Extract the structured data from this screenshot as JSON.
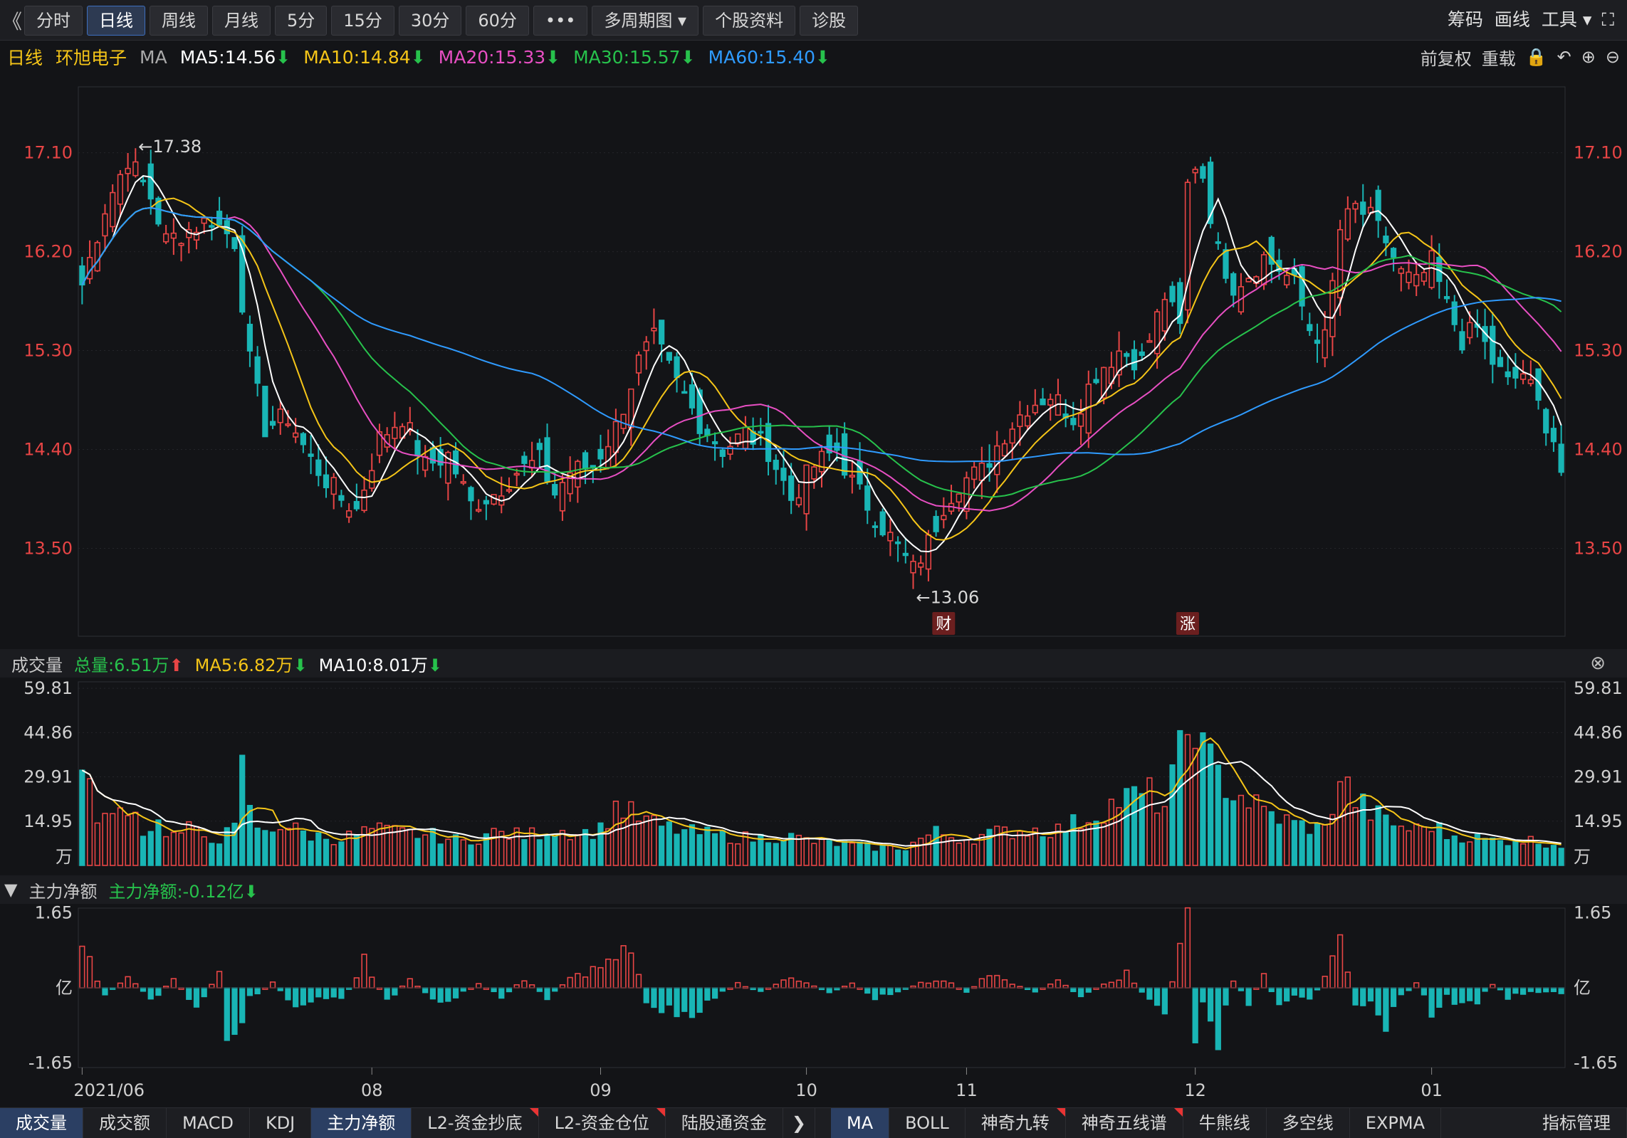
{
  "toolbar": {
    "collapse": "《",
    "periods": [
      {
        "label": "分时",
        "active": false
      },
      {
        "label": "日线",
        "active": true
      },
      {
        "label": "周线",
        "active": false
      },
      {
        "label": "月线",
        "active": false
      },
      {
        "label": "5分",
        "active": false
      },
      {
        "label": "15分",
        "active": false
      },
      {
        "label": "30分",
        "active": false
      },
      {
        "label": "60分",
        "active": false
      }
    ],
    "more": "•••",
    "multi": "多周期图",
    "profile": "个股资料",
    "diag": "诊股",
    "right": [
      "筹码",
      "画线",
      "工具"
    ],
    "tools_arrow": "▾",
    "fullscreen": "⛶"
  },
  "ma_bar": {
    "period": "日线",
    "stock": "环旭电子",
    "ind": "MA",
    "items": [
      {
        "text": "MA5:14.56",
        "color": "#ffffff"
      },
      {
        "text": "MA10:14.84",
        "color": "#f5c518"
      },
      {
        "text": "MA20:15.33",
        "color": "#e84fc3"
      },
      {
        "text": "MA30:15.57",
        "color": "#27c24c"
      },
      {
        "text": "MA60:15.40",
        "color": "#2f9bff"
      }
    ],
    "down_glyph": "⬇",
    "controls": [
      "前复权",
      "重载"
    ]
  },
  "main_chart": {
    "y_ticks": [
      "17.10",
      "16.20",
      "15.30",
      "14.40",
      "13.50"
    ],
    "ylim": [
      12.7,
      17.7
    ],
    "x_ticks": [
      {
        "label": "2021/06",
        "i": 0
      },
      {
        "label": "08",
        "i": 38
      },
      {
        "label": "09",
        "i": 68
      },
      {
        "label": "10",
        "i": 95
      },
      {
        "label": "11",
        "i": 116
      },
      {
        "label": "12",
        "i": 146
      },
      {
        "label": "01",
        "i": 177
      }
    ],
    "high_label": "←17.38",
    "low_label": "←13.06",
    "badges": [
      {
        "text": "财",
        "i": 113
      },
      {
        "text": "涨",
        "i": 145
      }
    ]
  },
  "volume": {
    "title": "成交量",
    "total": "总量:6.51万",
    "ma5": "MA5:6.82万",
    "ma10": "MA10:8.01万",
    "up_glyph": "⬆",
    "down_glyph": "⬇",
    "y_ticks": [
      "59.81",
      "44.86",
      "29.91",
      "14.95"
    ],
    "unit": "万",
    "close": "⊗"
  },
  "netflow": {
    "toggle": "▼",
    "title": "主力净额",
    "value": "主力净额:-0.12亿",
    "down_glyph": "⬇",
    "y_ticks": [
      "1.65",
      "-1.65"
    ],
    "unit": "亿"
  },
  "bottom_tabs": {
    "left": [
      {
        "label": "成交量",
        "active": true,
        "flag": false
      },
      {
        "label": "成交额",
        "active": false,
        "flag": false
      },
      {
        "label": "MACD",
        "active": false,
        "flag": false
      },
      {
        "label": "KDJ",
        "active": false,
        "flag": false
      },
      {
        "label": "主力净额",
        "active": true,
        "flag": false
      },
      {
        "label": "L2-资金抄底",
        "active": false,
        "flag": true
      },
      {
        "label": "L2-资金仓位",
        "active": false,
        "flag": true
      },
      {
        "label": "陆股通资金",
        "active": false,
        "flag": false
      }
    ],
    "arrow": "❯",
    "right": [
      {
        "label": "MA",
        "active": true,
        "flag": false
      },
      {
        "label": "BOLL",
        "active": false,
        "flag": false
      },
      {
        "label": "神奇九转",
        "active": false,
        "flag": true
      },
      {
        "label": "神奇五线谱",
        "active": false,
        "flag": true
      },
      {
        "label": "牛熊线",
        "active": false,
        "flag": false
      },
      {
        "label": "多空线",
        "active": false,
        "flag": false
      },
      {
        "label": "EXPMA",
        "active": false,
        "flag": false
      }
    ],
    "end": "指标管理"
  },
  "chart_data": {
    "type": "candlestick",
    "anchor_closes": [
      [
        0,
        15.9
      ],
      [
        3,
        16.6
      ],
      [
        6,
        17.05
      ],
      [
        9,
        16.7
      ],
      [
        11,
        16.3
      ],
      [
        14,
        16.4
      ],
      [
        17,
        16.5
      ],
      [
        20,
        16.3
      ],
      [
        22,
        15.2
      ],
      [
        24,
        14.6
      ],
      [
        27,
        14.7
      ],
      [
        30,
        14.3
      ],
      [
        34,
        13.95
      ],
      [
        36,
        13.85
      ],
      [
        39,
        14.5
      ],
      [
        42,
        14.7
      ],
      [
        45,
        14.25
      ],
      [
        48,
        14.35
      ],
      [
        51,
        13.9
      ],
      [
        54,
        14.0
      ],
      [
        57,
        14.2
      ],
      [
        60,
        14.3
      ],
      [
        62,
        14.0
      ],
      [
        64,
        14.2
      ],
      [
        67,
        14.25
      ],
      [
        70,
        14.6
      ],
      [
        73,
        15.2
      ],
      [
        75,
        15.4
      ],
      [
        78,
        15.0
      ],
      [
        81,
        14.65
      ],
      [
        84,
        14.4
      ],
      [
        87,
        14.55
      ],
      [
        90,
        14.4
      ],
      [
        93,
        13.95
      ],
      [
        96,
        14.25
      ],
      [
        99,
        14.4
      ],
      [
        101,
        14.1
      ],
      [
        104,
        13.8
      ],
      [
        107,
        13.5
      ],
      [
        109,
        13.3
      ],
      [
        111,
        13.55
      ],
      [
        113,
        13.9
      ],
      [
        115,
        14.1
      ],
      [
        118,
        14.2
      ],
      [
        121,
        14.55
      ],
      [
        124,
        14.8
      ],
      [
        127,
        14.9
      ],
      [
        130,
        14.7
      ],
      [
        133,
        15.1
      ],
      [
        136,
        15.3
      ],
      [
        139,
        15.2
      ],
      [
        142,
        15.8
      ],
      [
        144,
        15.5
      ],
      [
        145,
        16.8
      ],
      [
        146,
        17.0
      ],
      [
        147,
        16.9
      ],
      [
        149,
        16.2
      ],
      [
        151,
        15.9
      ],
      [
        153,
        16.0
      ],
      [
        155,
        16.15
      ],
      [
        157,
        16.05
      ],
      [
        159,
        15.9
      ],
      [
        161,
        15.5
      ],
      [
        163,
        15.4
      ],
      [
        165,
        16.4
      ],
      [
        167,
        16.6
      ],
      [
        169,
        16.5
      ],
      [
        171,
        16.3
      ],
      [
        173,
        16.0
      ],
      [
        175,
        15.9
      ],
      [
        177,
        16.1
      ],
      [
        179,
        15.7
      ],
      [
        181,
        15.4
      ],
      [
        183,
        15.5
      ],
      [
        185,
        15.2
      ],
      [
        187,
        15.0
      ],
      [
        189,
        15.1
      ],
      [
        191,
        14.8
      ],
      [
        193,
        14.5
      ],
      [
        194,
        14.2
      ]
    ],
    "volume_anchors": [
      [
        0,
        30
      ],
      [
        2,
        18
      ],
      [
        4,
        15
      ],
      [
        6,
        22
      ],
      [
        8,
        12
      ],
      [
        10,
        14
      ],
      [
        12,
        10
      ],
      [
        14,
        12
      ],
      [
        16,
        10
      ],
      [
        18,
        9
      ],
      [
        20,
        12
      ],
      [
        21,
        32
      ],
      [
        23,
        11
      ],
      [
        26,
        14
      ],
      [
        30,
        10
      ],
      [
        34,
        9
      ],
      [
        38,
        12
      ],
      [
        42,
        11
      ],
      [
        46,
        10
      ],
      [
        50,
        8
      ],
      [
        54,
        11
      ],
      [
        58,
        10
      ],
      [
        62,
        12
      ],
      [
        66,
        11
      ],
      [
        68,
        12
      ],
      [
        70,
        20
      ],
      [
        73,
        16
      ],
      [
        76,
        13
      ],
      [
        80,
        11
      ],
      [
        84,
        10
      ],
      [
        88,
        9
      ],
      [
        92,
        10
      ],
      [
        96,
        8
      ],
      [
        100,
        7
      ],
      [
        104,
        6
      ],
      [
        108,
        6
      ],
      [
        110,
        9
      ],
      [
        112,
        11
      ],
      [
        114,
        10
      ],
      [
        116,
        9
      ],
      [
        120,
        11
      ],
      [
        124,
        12
      ],
      [
        128,
        12
      ],
      [
        132,
        16
      ],
      [
        136,
        22
      ],
      [
        140,
        24
      ],
      [
        142,
        20
      ],
      [
        145,
        45
      ],
      [
        146,
        52
      ],
      [
        147,
        38
      ],
      [
        149,
        30
      ],
      [
        151,
        25
      ],
      [
        153,
        22
      ],
      [
        155,
        18
      ],
      [
        157,
        16
      ],
      [
        159,
        14
      ],
      [
        161,
        13
      ],
      [
        163,
        12
      ],
      [
        165,
        30
      ],
      [
        167,
        22
      ],
      [
        169,
        18
      ],
      [
        171,
        15
      ],
      [
        173,
        13
      ],
      [
        175,
        12
      ],
      [
        177,
        14
      ],
      [
        179,
        10
      ],
      [
        181,
        10
      ],
      [
        183,
        9
      ],
      [
        186,
        8
      ],
      [
        188,
        9
      ],
      [
        191,
        8
      ],
      [
        194,
        7
      ]
    ],
    "netflow_anchors": [
      [
        0,
        0.9
      ],
      [
        3,
        -0.2
      ],
      [
        6,
        0.3
      ],
      [
        9,
        -0.3
      ],
      [
        12,
        0.2
      ],
      [
        15,
        -0.4
      ],
      [
        18,
        0.3
      ],
      [
        19,
        -0.9
      ],
      [
        20,
        -1.2
      ],
      [
        22,
        -0.2
      ],
      [
        25,
        0.1
      ],
      [
        28,
        -0.4
      ],
      [
        31,
        -0.2
      ],
      [
        34,
        -0.3
      ],
      [
        37,
        0.6
      ],
      [
        40,
        -0.3
      ],
      [
        43,
        0.2
      ],
      [
        46,
        -0.3
      ],
      [
        49,
        -0.2
      ],
      [
        52,
        0.1
      ],
      [
        55,
        -0.2
      ],
      [
        58,
        0.2
      ],
      [
        61,
        -0.2
      ],
      [
        64,
        0.2
      ],
      [
        67,
        0.4
      ],
      [
        70,
        0.6
      ],
      [
        72,
        0.9
      ],
      [
        74,
        -0.3
      ],
      [
        77,
        -0.5
      ],
      [
        80,
        -0.6
      ],
      [
        83,
        -0.2
      ],
      [
        86,
        0.1
      ],
      [
        89,
        -0.1
      ],
      [
        92,
        0.2
      ],
      [
        95,
        0.1
      ],
      [
        98,
        -0.1
      ],
      [
        101,
        0.1
      ],
      [
        104,
        -0.2
      ],
      [
        107,
        -0.1
      ],
      [
        110,
        0.1
      ],
      [
        113,
        0.2
      ],
      [
        116,
        -0.1
      ],
      [
        119,
        0.3
      ],
      [
        122,
        0.1
      ],
      [
        125,
        -0.1
      ],
      [
        128,
        0.2
      ],
      [
        131,
        -0.2
      ],
      [
        134,
        0.1
      ],
      [
        137,
        0.3
      ],
      [
        140,
        -0.3
      ],
      [
        142,
        -0.6
      ],
      [
        145,
        1.65
      ],
      [
        146,
        -1.1
      ],
      [
        147,
        -0.4
      ],
      [
        148,
        -0.8
      ],
      [
        149,
        -1.2
      ],
      [
        151,
        0.2
      ],
      [
        153,
        -0.3
      ],
      [
        155,
        0.3
      ],
      [
        157,
        -0.5
      ],
      [
        159,
        -0.2
      ],
      [
        161,
        -0.3
      ],
      [
        163,
        0.2
      ],
      [
        165,
        0.9
      ],
      [
        167,
        -0.3
      ],
      [
        169,
        -0.4
      ],
      [
        171,
        -0.8
      ],
      [
        173,
        -0.2
      ],
      [
        175,
        0.1
      ],
      [
        177,
        -0.5
      ],
      [
        179,
        -0.2
      ],
      [
        181,
        -0.4
      ],
      [
        183,
        -0.3
      ],
      [
        185,
        0.1
      ],
      [
        187,
        -0.2
      ],
      [
        190,
        -0.1
      ],
      [
        194,
        -0.1
      ]
    ],
    "n": 195,
    "ylim": [
      12.7,
      17.7
    ],
    "volume_ylim": [
      0,
      62
    ],
    "netflow_ylim": [
      -1.75,
      1.75
    ],
    "ma_colors": {
      "ma5": "#ffffff",
      "ma10": "#f5c518",
      "ma20": "#e84fc3",
      "ma30": "#27c24c",
      "ma60": "#2f9bff"
    },
    "up_color": "#e84545",
    "down_color": "#19b5b5"
  }
}
